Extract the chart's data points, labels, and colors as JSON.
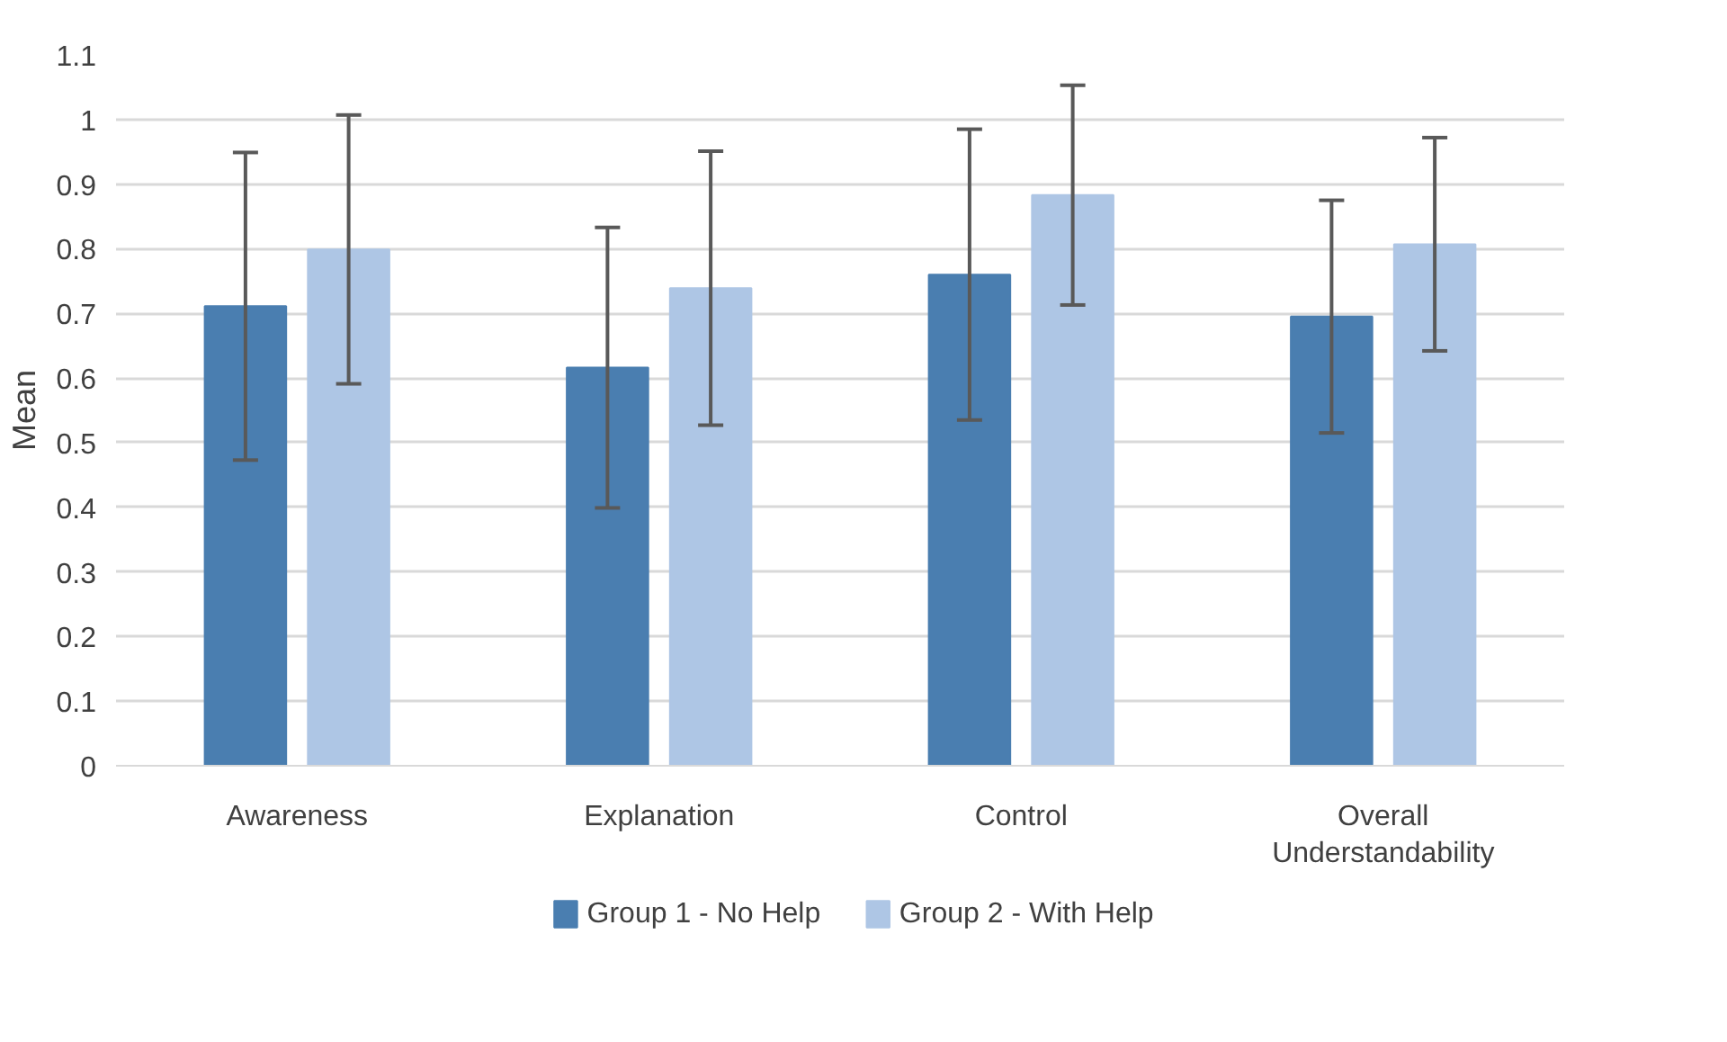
{
  "chart_data": {
    "type": "bar",
    "ylabel": "Mean",
    "categories": [
      "Awareness",
      "Explanation",
      "Control",
      "Overall Understandability"
    ],
    "series": [
      {
        "name": "Group 1 - No Help",
        "color": "#4a7eb0",
        "values": [
          0.711,
          0.616,
          0.76,
          0.695
        ],
        "errors": [
          0.238,
          0.217,
          0.225,
          0.18
        ]
      },
      {
        "name": "Group 2 - With Help",
        "color": "#aec6e5",
        "values": [
          0.799,
          0.739,
          0.883,
          0.807
        ],
        "errors": [
          0.208,
          0.212,
          0.17,
          0.165
        ]
      }
    ],
    "ylim": [
      0,
      1.1
    ],
    "yticks": [
      0,
      0.1,
      0.2,
      0.3,
      0.4,
      0.5,
      0.6,
      0.7,
      0.8,
      0.9,
      1,
      1.1
    ],
    "grid": "y",
    "legend": "bottom"
  }
}
